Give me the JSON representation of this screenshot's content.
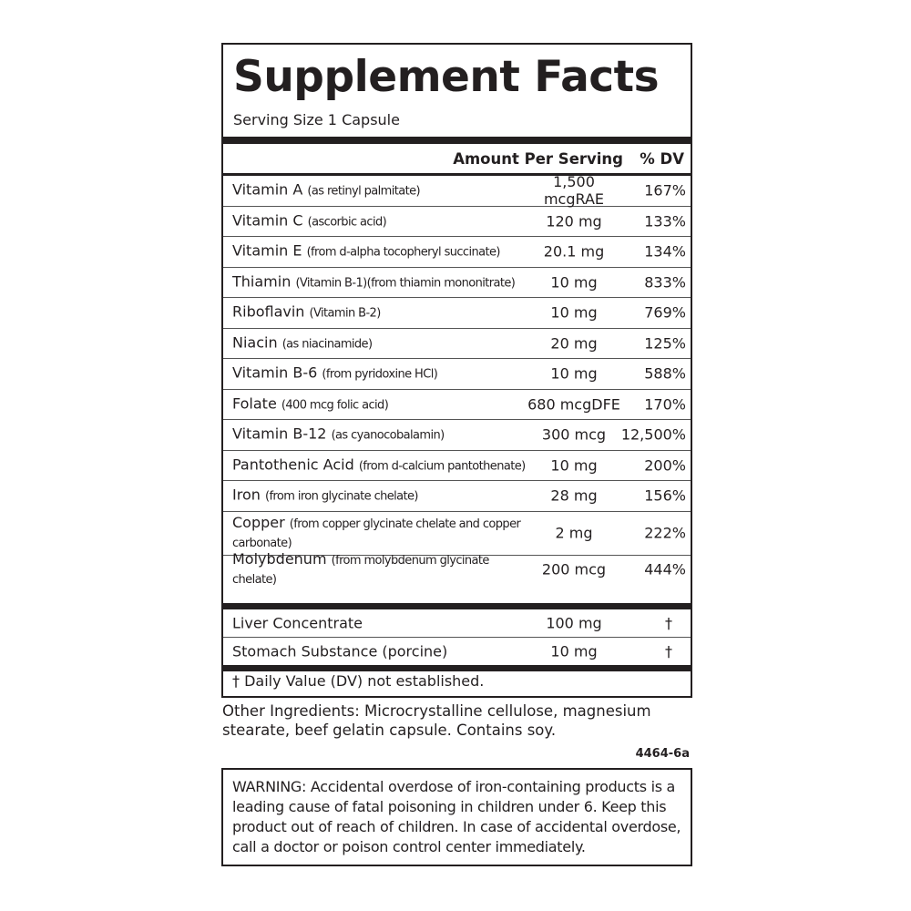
{
  "title": "Supplement Facts",
  "serving_size": "Serving Size 1 Capsule",
  "header": {
    "amount": "Amount Per Serving",
    "dv": "% DV"
  },
  "rows": [
    {
      "name": "Vitamin A",
      "source": "(as retinyl palmitate)",
      "amount": "1,500 mcgRAE",
      "dv": "167%"
    },
    {
      "name": "Vitamin C",
      "source": "(ascorbic acid)",
      "amount": "120 mg",
      "dv": "133%"
    },
    {
      "name": "Vitamin E",
      "source": "(from d-alpha tocopheryl succinate)",
      "amount": "20.1 mg",
      "dv": "134%"
    },
    {
      "name": "Thiamin",
      "source": "(Vitamin B-1)(from thiamin mononitrate)",
      "amount": "10 mg",
      "dv": "833%"
    },
    {
      "name": "Riboflavin",
      "source": "(Vitamin B-2)",
      "amount": "10 mg",
      "dv": "769%"
    },
    {
      "name": "Niacin",
      "source": "(as niacinamide)",
      "amount": "20 mg",
      "dv": "125%"
    },
    {
      "name": "Vitamin B-6",
      "source": "(from pyridoxine HCl)",
      "amount": "10 mg",
      "dv": "588%"
    },
    {
      "name": "Folate",
      "source": "(400 mcg folic acid)",
      "amount": "680 mcgDFE",
      "dv": "170%"
    },
    {
      "name": "Vitamin B-12",
      "source": "(as cyanocobalamin)",
      "amount": "300 mcg",
      "dv": "12,500%"
    },
    {
      "name": "Pantothenic Acid",
      "source": "(from d-calcium pantothenate)",
      "amount": "10 mg",
      "dv": "200%"
    },
    {
      "name": "Iron",
      "source": "(from iron glycinate chelate)",
      "amount": "28 mg",
      "dv": "156%"
    },
    {
      "name": "Copper",
      "source": "(from copper glycinate chelate and copper carbonate)",
      "amount": "2 mg",
      "dv": "222%"
    },
    {
      "name": "Molybdenum",
      "source": "(from molybdenum glycinate chelate)",
      "amount": "200 mcg",
      "dv": "444%"
    }
  ],
  "other_rows": [
    {
      "name": "Liver Concentrate",
      "amount": "100 mg",
      "dv": "†"
    },
    {
      "name": "Stomach Substance (porcine)",
      "amount": "10 mg",
      "dv": "†"
    }
  ],
  "footnote": "† Daily Value (DV) not established.",
  "other_ingredients": "Other Ingredients: Microcrystalline cellulose, magnesium stearate, beef gelatin capsule. Contains soy.",
  "code": "4464-6a",
  "warning": "WARNING: Accidental overdose of iron-containing products is a leading cause of fatal poisoning in children under 6.  Keep this product out of reach of children.  In case of accidental overdose, call a doctor or poison control center immediately."
}
